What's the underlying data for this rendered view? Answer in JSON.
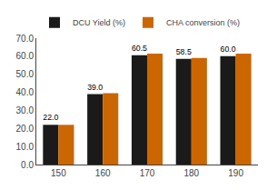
{
  "chart_data": {
    "type": "bar",
    "categories": [
      "150",
      "160",
      "170",
      "180",
      "190"
    ],
    "series": [
      {
        "name": "DCU Yield (%)",
        "color": "#1a1a1a",
        "values": [
          22.0,
          39.0,
          60.5,
          58.5,
          60.0
        ],
        "data_labels": true,
        "value_labels": [
          "22.0",
          "39.0",
          "60.5",
          "58.5",
          "60.0"
        ]
      },
      {
        "name": "CHA conversion (%)",
        "color": "#cc6600",
        "values": [
          22.0,
          39.5,
          61.5,
          59.0,
          61.5
        ]
      }
    ],
    "ylim": [
      0,
      70
    ],
    "yticks": [
      {
        "value": 0,
        "label": "0.0"
      },
      {
        "value": 10,
        "label": "10.0"
      },
      {
        "value": 20,
        "label": "20.0"
      },
      {
        "value": 30,
        "label": "30.0"
      },
      {
        "value": 40,
        "label": "40.0"
      },
      {
        "value": 50,
        "label": "50.0"
      },
      {
        "value": 60,
        "label": "60.0"
      },
      {
        "value": 70,
        "label": "70.0"
      }
    ],
    "grid": false,
    "legend": "upper left"
  }
}
